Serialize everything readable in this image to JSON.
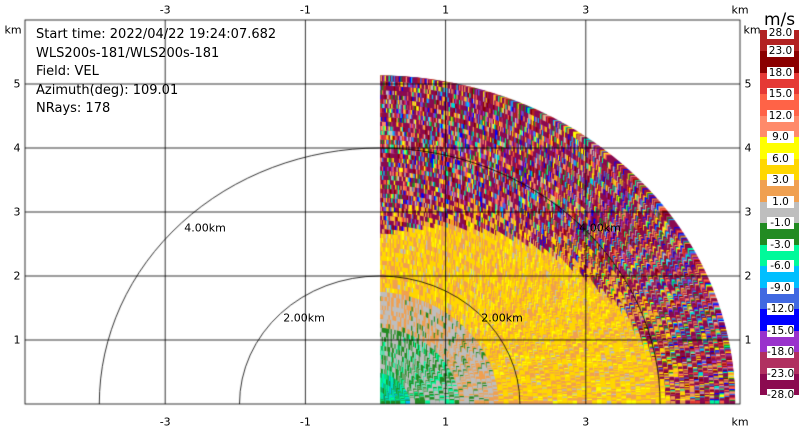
{
  "info": {
    "start_time": "Start time: 2022/04/22 19:24:07.682",
    "instrument": "WLS200s-181/WLS200s-181",
    "field": "Field: VEL",
    "azimuth": "Azimuth(deg): 109.01",
    "nrays": "NRays: 178"
  },
  "chart_data": {
    "type": "heatmap",
    "subtype": "radar-ppi-sector",
    "xlabel": "km",
    "ylabel": "km",
    "xlim": [
      -5,
      5.2
    ],
    "ylim": [
      0,
      6
    ],
    "x_ticks": [
      "-3",
      "-1",
      "1",
      "3"
    ],
    "y_ticks": [
      "1",
      "2",
      "3",
      "4",
      "5"
    ],
    "grid": true,
    "range_rings": [
      "2.00km",
      "4.00km"
    ],
    "colorbar": {
      "unit": "m/s",
      "labels": [
        "28.0",
        "23.0",
        "18.0",
        "15.0",
        "12.0",
        "9.0",
        "6.0",
        "3.0",
        "1.0",
        "-1.0",
        "-3.0",
        "-6.0",
        "-9.0",
        "-12.0",
        "-15.0",
        "-18.0",
        "-23.0",
        "-28.0"
      ],
      "colors": [
        "#b22222",
        "#8b0000",
        "#e53935",
        "#ff6347",
        "#ff8a6a",
        "#ffff00",
        "#ffd700",
        "#f0a050",
        "#bebebe",
        "#228b22",
        "#00fa9a",
        "#00bfff",
        "#4169e1",
        "#0000ff",
        "#9932cc",
        "#b03060",
        "#8b0a50"
      ]
    }
  }
}
